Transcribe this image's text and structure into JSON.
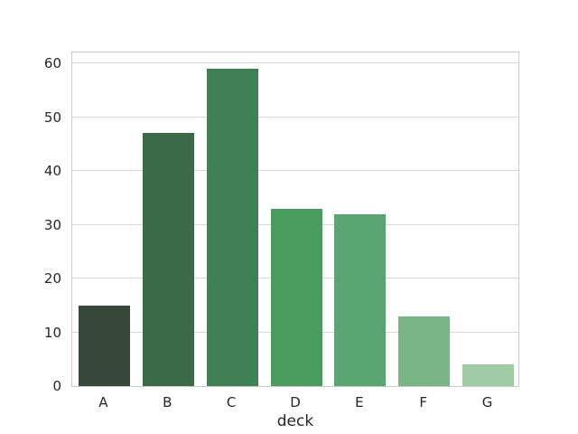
{
  "chart_data": {
    "type": "bar",
    "title": "",
    "categories": [
      "A",
      "B",
      "C",
      "D",
      "E",
      "F",
      "G"
    ],
    "values": [
      15,
      47,
      59,
      33,
      32,
      13,
      4
    ],
    "bar_colors": [
      "#35483b",
      "#3c6a49",
      "#3f8055",
      "#4b9a60",
      "#5aa471",
      "#78b586",
      "#9fcba5"
    ],
    "xlabel": "deck",
    "ylabel": "",
    "ylim": [
      0,
      62.2
    ],
    "yticks": [
      0,
      10,
      20,
      30,
      40,
      50,
      60
    ],
    "grid": true,
    "grid_axis": "y",
    "legend": false,
    "background": "#ffffff"
  },
  "style": {
    "grid_color": "#d9d9d9",
    "spine_color": "#cbcbcb",
    "text_color": "#262626"
  }
}
